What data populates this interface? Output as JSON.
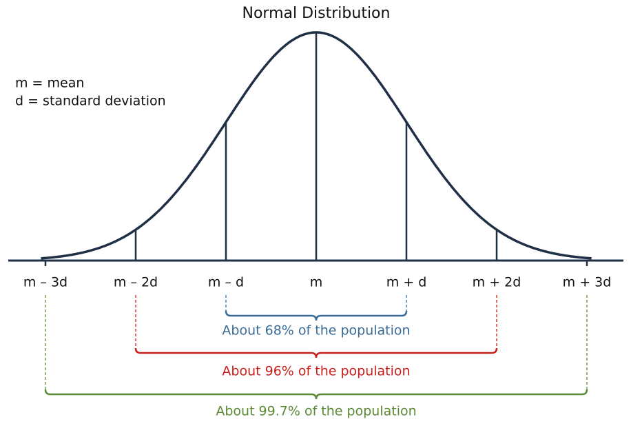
{
  "title": "Normal Distribution",
  "legend": [
    "m = mean",
    "d = standard deviation"
  ],
  "axis_labels": [
    "m – 3d",
    "m – 2d",
    "m – d",
    "m",
    "m + d",
    "m + 2d",
    "m + 3d"
  ],
  "brackets": [
    {
      "label": "About 68% of the population",
      "color": "#3a6a96"
    },
    {
      "label": "About 96% of the population",
      "color": "#c8201c"
    },
    {
      "label": "About 99.7% of the population",
      "color": "#5a8a35"
    }
  ]
}
